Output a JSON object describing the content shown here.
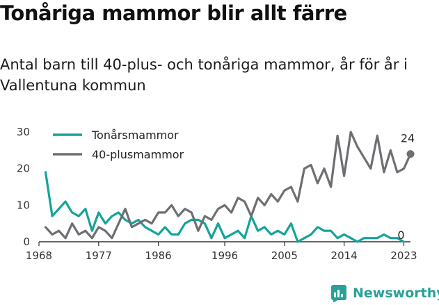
{
  "title": "Tonåriga mammor blir allt färre",
  "subtitle": "Antal barn till 40-plus- och tonåriga mammor, år för år i Vallentuna kommun",
  "brand": "Newsworthy",
  "colors": {
    "teen": "#14a39a",
    "forty": "#6e6e73",
    "axis": "#333333"
  },
  "chart_data": {
    "type": "line",
    "title": "Tonåriga mammor blir allt färre",
    "xlabel": "",
    "ylabel": "",
    "xlim": [
      1968,
      2024
    ],
    "ylim": [
      0,
      30
    ],
    "x_ticks": [
      1968,
      1977,
      1986,
      1996,
      2005,
      2014,
      2023
    ],
    "y_ticks": [
      0,
      10,
      20,
      30
    ],
    "legend_position": "top-left",
    "x": [
      1969,
      1970,
      1971,
      1972,
      1973,
      1974,
      1975,
      1976,
      1977,
      1978,
      1979,
      1980,
      1981,
      1982,
      1983,
      1984,
      1985,
      1986,
      1987,
      1988,
      1989,
      1990,
      1991,
      1992,
      1993,
      1994,
      1995,
      1996,
      1997,
      1998,
      1999,
      2000,
      2001,
      2002,
      2003,
      2004,
      2005,
      2006,
      2007,
      2008,
      2009,
      2010,
      2011,
      2012,
      2013,
      2014,
      2015,
      2016,
      2017,
      2018,
      2019,
      2020,
      2021,
      2022,
      2023
    ],
    "series": [
      {
        "name": "Tonårsmammor",
        "color": "#14a39a",
        "values": [
          19,
          7,
          9,
          11,
          8,
          7,
          9,
          3,
          8,
          5,
          7,
          8,
          6,
          5,
          6,
          4,
          3,
          2,
          4,
          2,
          2,
          5,
          6,
          6,
          5,
          1,
          5,
          1,
          2,
          3,
          1,
          7,
          3,
          4,
          2,
          3,
          2,
          5,
          0,
          1,
          2,
          4,
          3,
          3,
          1,
          2,
          1,
          0,
          1,
          1,
          1,
          2,
          1,
          1,
          0
        ],
        "end_label": "0",
        "end_marker": false
      },
      {
        "name": "40-plusmammor",
        "color": "#6e6e73",
        "values": [
          4,
          2,
          3,
          1,
          5,
          2,
          3,
          1,
          4,
          3,
          1,
          5,
          9,
          4,
          5,
          6,
          5,
          8,
          8,
          10,
          7,
          9,
          8,
          3,
          7,
          6,
          9,
          10,
          8,
          12,
          11,
          7,
          12,
          10,
          13,
          11,
          14,
          15,
          11,
          20,
          21,
          16,
          20,
          15,
          29,
          18,
          30,
          26,
          23,
          20,
          29,
          19,
          25,
          19,
          20
        ],
        "end_x": 2024,
        "end_value": 24,
        "end_label": "24",
        "end_marker": true
      }
    ]
  }
}
